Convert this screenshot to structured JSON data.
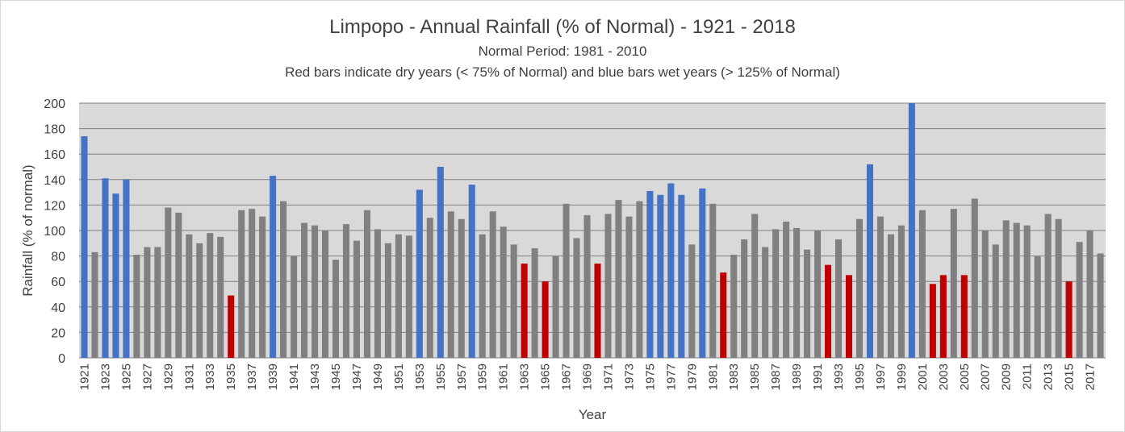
{
  "chart_data": {
    "type": "bar",
    "title": "Limpopo - Annual Rainfall (% of Normal) - 1921 - 2018",
    "subtitle": "Normal Period: 1981 - 2010",
    "subtitle2": "Red bars indicate dry years (< 75% of Normal) and blue bars wet years (> 125% of Normal)",
    "xlabel": "Year",
    "ylabel": "Rainfall (% of normal)",
    "ylim": [
      0,
      200
    ],
    "yticks": [
      0,
      20,
      40,
      60,
      80,
      100,
      120,
      140,
      160,
      180,
      200
    ],
    "grid": true,
    "colors": {
      "normal": "#808080",
      "dry": "#c00000",
      "wet": "#4472c4",
      "plot_bg": "#d9d9d9",
      "grid": "#808080"
    },
    "x_tick_labels": [
      "1921",
      "1923",
      "1925",
      "1927",
      "1929",
      "1931",
      "1933",
      "1935",
      "1937",
      "1939",
      "1941",
      "1943",
      "1945",
      "1947",
      "1949",
      "1951",
      "1953",
      "1955",
      "1957",
      "1959",
      "1961",
      "1963",
      "1965",
      "1967",
      "1969",
      "1971",
      "1973",
      "1975",
      "1977",
      "1979",
      "1981",
      "1983",
      "1985",
      "1987",
      "1989",
      "1991",
      "1993",
      "1995",
      "1997",
      "1999",
      "2001",
      "2003",
      "2005",
      "2007",
      "2009",
      "2011",
      "2013",
      "2015",
      "2017"
    ],
    "categories": [
      "1921",
      "1922",
      "1923",
      "1924",
      "1925",
      "1926",
      "1927",
      "1928",
      "1929",
      "1930",
      "1931",
      "1932",
      "1933",
      "1934",
      "1935",
      "1936",
      "1937",
      "1938",
      "1939",
      "1940",
      "1941",
      "1942",
      "1943",
      "1944",
      "1945",
      "1946",
      "1947",
      "1948",
      "1949",
      "1950",
      "1951",
      "1952",
      "1953",
      "1954",
      "1955",
      "1956",
      "1957",
      "1958",
      "1959",
      "1960",
      "1961",
      "1962",
      "1963",
      "1964",
      "1965",
      "1966",
      "1967",
      "1968",
      "1969",
      "1970",
      "1971",
      "1972",
      "1973",
      "1974",
      "1975",
      "1976",
      "1977",
      "1978",
      "1979",
      "1980",
      "1981",
      "1982",
      "1983",
      "1984",
      "1985",
      "1986",
      "1987",
      "1988",
      "1989",
      "1990",
      "1991",
      "1992",
      "1993",
      "1994",
      "1995",
      "1996",
      "1997",
      "1998",
      "1999",
      "2000",
      "2001",
      "2002",
      "2003",
      "2004",
      "2005",
      "2006",
      "2007",
      "2008",
      "2009",
      "2010",
      "2011",
      "2012",
      "2013",
      "2014",
      "2015",
      "2016",
      "2017",
      "2018"
    ],
    "values": [
      174,
      83,
      141,
      129,
      140,
      81,
      87,
      87,
      118,
      114,
      97,
      90,
      98,
      95,
      49,
      116,
      117,
      111,
      143,
      123,
      80,
      106,
      104,
      100,
      77,
      105,
      92,
      116,
      101,
      90,
      97,
      96,
      132,
      110,
      150,
      115,
      109,
      136,
      97,
      115,
      103,
      89,
      74,
      86,
      60,
      80,
      121,
      94,
      112,
      74,
      113,
      124,
      111,
      123,
      131,
      128,
      137,
      128,
      89,
      133,
      121,
      67,
      81,
      93,
      113,
      87,
      101,
      107,
      102,
      85,
      100,
      73,
      93,
      65,
      109,
      152,
      111,
      97,
      104,
      200,
      116,
      58,
      65,
      117,
      65,
      125,
      100,
      89,
      108,
      106,
      104,
      80,
      113,
      109,
      60,
      91,
      100,
      82
    ]
  }
}
